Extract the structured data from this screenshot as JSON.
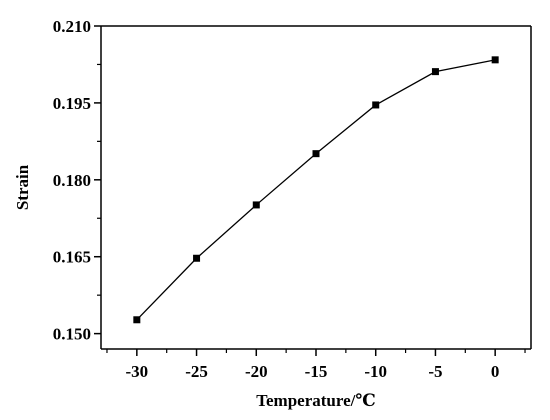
{
  "chart_data": {
    "type": "line",
    "title": "",
    "xlabel": "Temperature/℃",
    "ylabel": "Strain",
    "xlim": [
      -33,
      3
    ],
    "ylim": [
      0.147,
      0.21
    ],
    "x_ticks": [
      -30,
      -25,
      -20,
      -15,
      -10,
      -5,
      0
    ],
    "x_tick_labels": [
      "-30",
      "-25",
      "-20",
      "-15",
      "-10",
      "-5",
      "0"
    ],
    "y_ticks": [
      0.15,
      0.165,
      0.18,
      0.195,
      0.21
    ],
    "y_tick_labels": [
      "0.150",
      "0.165",
      "0.180",
      "0.195",
      "0.210"
    ],
    "grid": false,
    "legend": "none",
    "series": [
      {
        "x": [
          -30,
          -25,
          -20,
          -15,
          -10,
          -5,
          0
        ],
        "values": [
          0.1527,
          0.1647,
          0.1751,
          0.1851,
          0.1946,
          0.2011,
          0.2034
        ],
        "color": "#000000",
        "marker": "square"
      }
    ]
  }
}
